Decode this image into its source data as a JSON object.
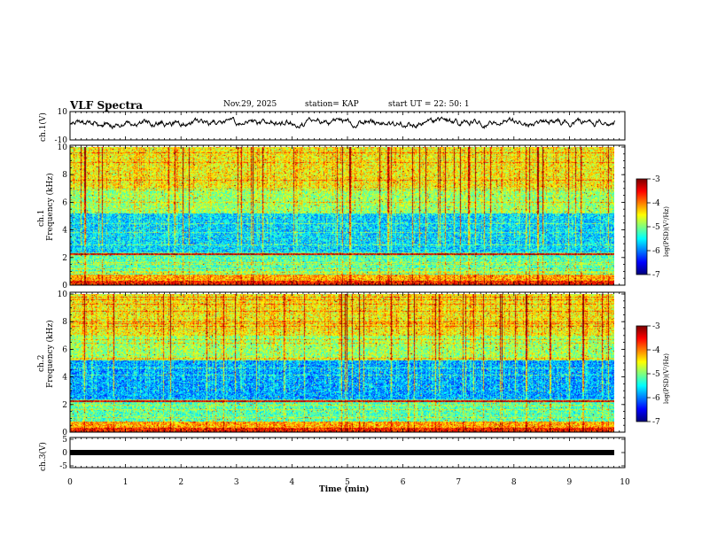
{
  "header": {
    "title": "VLF Spectra",
    "date": "Nov.29, 2025",
    "station": "station= KAP",
    "start_ut": "start  UT =   22: 50: 1"
  },
  "chart_data": [
    {
      "type": "line",
      "name": "ch1-waveform",
      "ylabel": "ch.1(V)",
      "ylim": [
        -10,
        10
      ],
      "ytick_labels": [
        "10",
        "-10"
      ],
      "x_range": [
        0,
        9.82
      ],
      "amplitude_range": [
        -2,
        6
      ]
    },
    {
      "type": "heatmap",
      "name": "ch1-spectrogram",
      "ylabel": "ch.1\nFrequency (kHz)",
      "ylim": [
        0,
        10
      ],
      "ytick_labels": [
        "0",
        "2",
        "4",
        "6",
        "8",
        "10"
      ],
      "colorbar_label": "log(PSD)(V²/Hz)",
      "colorbar_ticks": [
        "-3",
        "-4",
        "-5",
        "-6",
        "-7"
      ],
      "colorbar_range": [
        -7,
        -3
      ]
    },
    {
      "type": "heatmap",
      "name": "ch2-spectrogram",
      "ylabel": "ch.2\nFrequency (kHz)",
      "ylim": [
        0,
        10
      ],
      "ytick_labels": [
        "0",
        "2",
        "4",
        "6",
        "8",
        "10"
      ],
      "colorbar_label": "log(PSD)(V²/Hz)",
      "colorbar_ticks": [
        "-3",
        "-4",
        "-5",
        "-6",
        "-7"
      ],
      "colorbar_range": [
        -7,
        -3
      ]
    },
    {
      "type": "line",
      "name": "ch3-waveform",
      "ylabel": "ch.3(V)",
      "ylim": [
        -5,
        5
      ],
      "ytick_labels": [
        "5",
        "0",
        "-5"
      ],
      "constant_value": -0.3
    }
  ],
  "xaxis": {
    "label": "Time (min)",
    "range": [
      0,
      10
    ],
    "tick_labels": [
      "0",
      "1",
      "2",
      "3",
      "4",
      "5",
      "6",
      "7",
      "8",
      "9",
      "10"
    ]
  },
  "colors": {
    "axis": "#000000",
    "background": "#ffffff",
    "waveform": "#000000"
  }
}
